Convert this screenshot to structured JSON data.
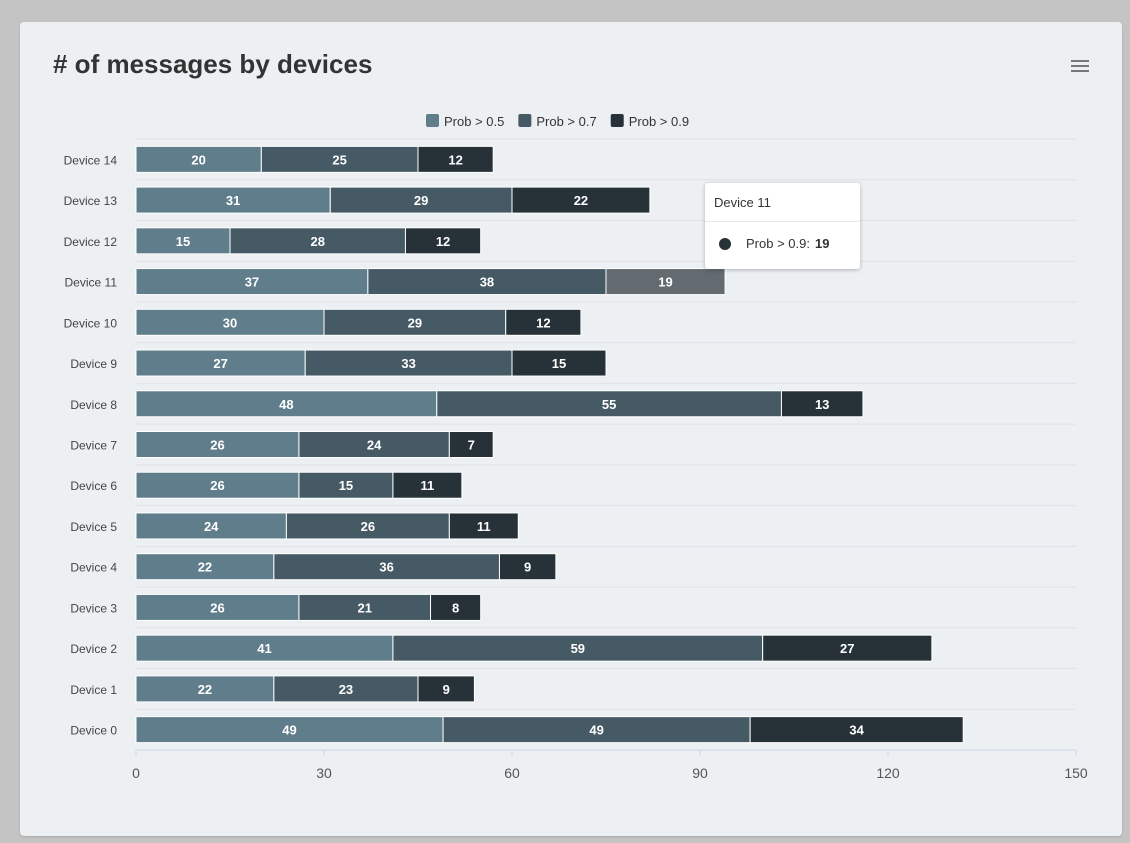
{
  "header": {
    "title": "# of messages by devices",
    "menu_icon": "hamburger-menu-icon"
  },
  "tooltip": {
    "category": "Device 11",
    "series": "Prob > 0.9:",
    "value": "19"
  },
  "colors": {
    "series": [
      "#607d8b",
      "#455a64",
      "#263238"
    ],
    "hover": "#636a70"
  },
  "chart_data": {
    "type": "bar",
    "orientation": "horizontal",
    "stacked": true,
    "categories": [
      "Device 14",
      "Device 13",
      "Device 12",
      "Device 11",
      "Device 10",
      "Device 9",
      "Device 8",
      "Device 7",
      "Device 6",
      "Device 5",
      "Device 4",
      "Device 3",
      "Device 2",
      "Device 1",
      "Device 0"
    ],
    "series": [
      {
        "name": "Prob > 0.5",
        "values": [
          20,
          31,
          15,
          37,
          30,
          27,
          48,
          26,
          26,
          24,
          22,
          26,
          41,
          22,
          49
        ]
      },
      {
        "name": "Prob > 0.7",
        "values": [
          25,
          29,
          28,
          38,
          29,
          33,
          55,
          24,
          15,
          26,
          36,
          21,
          59,
          23,
          49
        ]
      },
      {
        "name": "Prob > 0.9",
        "values": [
          12,
          22,
          12,
          19,
          12,
          15,
          13,
          7,
          11,
          11,
          9,
          8,
          27,
          9,
          34
        ]
      }
    ],
    "xlim": [
      0,
      150
    ],
    "xticks": [
      0,
      30,
      60,
      90,
      120,
      150
    ],
    "legend_position": "top",
    "data_labels": true,
    "grid": "horizontal"
  }
}
